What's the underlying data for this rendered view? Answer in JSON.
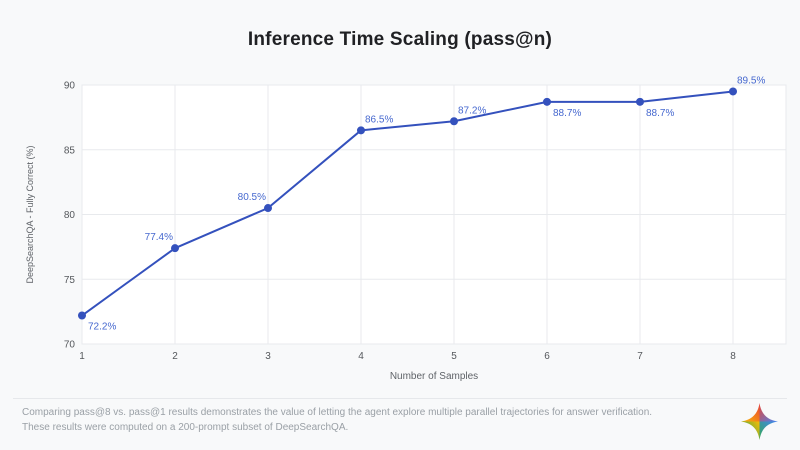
{
  "page": {
    "title": "Inference Time Scaling (pass@n)",
    "footer": {
      "line1": "Comparing pass@8 vs. pass@1 results demonstrates the value of letting the agent explore multiple parallel trajectories for answer verification.",
      "line2": "These results were computed on a 200-prompt subset of DeepSearchQA."
    },
    "logo_name": "gemini-sparkle-logo",
    "colors": {
      "background": "#f8f9fa",
      "plot_background": "#ffffff",
      "grid": "#e8eaed",
      "line": "#3451bd",
      "point": "#3451bd",
      "point_label": "#4668cf",
      "tick_text": "#55585c",
      "axis_title_text": "#5f6368",
      "footer_text": "#9aa0a6",
      "logo_red": "#ea4335",
      "logo_blue": "#4285f4",
      "logo_green": "#34a853",
      "logo_yellow": "#fbbc04"
    }
  },
  "chart_data": {
    "type": "line",
    "title": "Inference Time Scaling (pass@n)",
    "xlabel": "Number of Samples",
    "ylabel": "DeepSearchQA - Fully Correct (%)",
    "x": [
      1,
      2,
      3,
      4,
      5,
      6,
      7,
      8
    ],
    "values": [
      72.2,
      77.4,
      80.5,
      86.5,
      87.2,
      88.7,
      88.7,
      89.5
    ],
    "point_labels": [
      "72.2%",
      "77.4%",
      "80.5%",
      "86.5%",
      "87.2%",
      "88.7%",
      "88.7%",
      "89.5%"
    ],
    "label_placement": [
      "below-right",
      "above-left",
      "above-left",
      "above-right",
      "above-right",
      "below-right",
      "below-right",
      "above-right"
    ],
    "xlim": [
      1,
      8.57
    ],
    "ylim": [
      70,
      90
    ],
    "yticks": [
      70,
      75,
      80,
      85,
      90
    ],
    "xticks": [
      1,
      2,
      3,
      4,
      5,
      6,
      7,
      8
    ],
    "grid": true,
    "legend": "none"
  }
}
